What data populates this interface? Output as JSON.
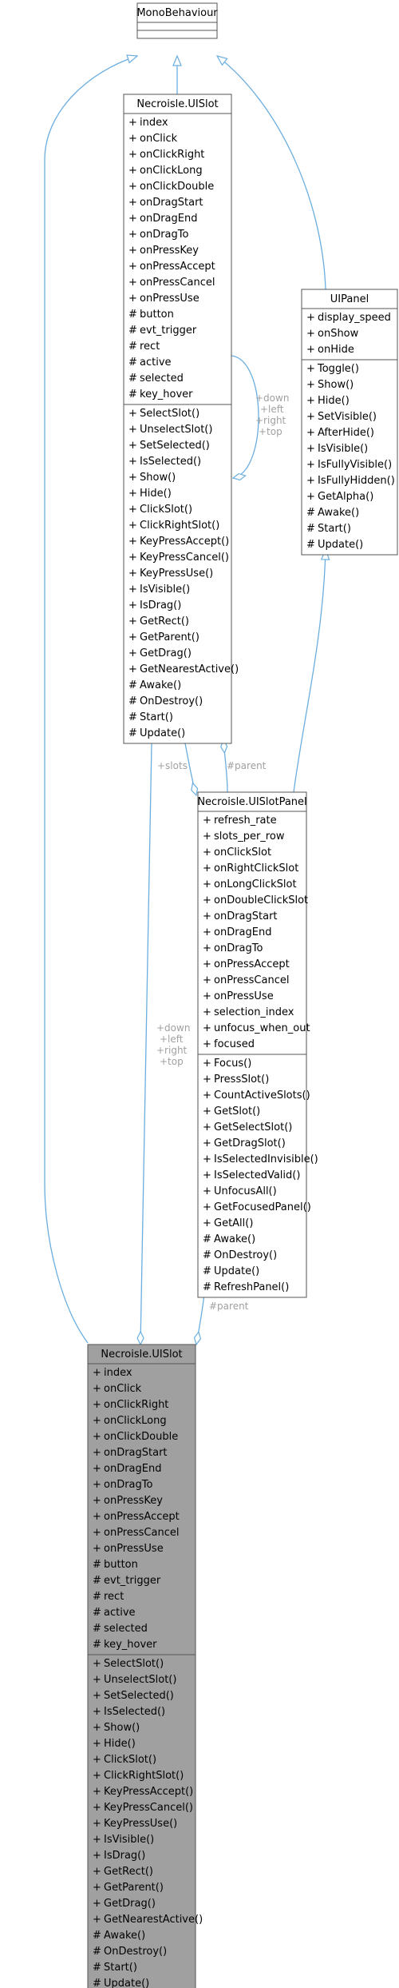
{
  "classes": {
    "monobehaviour": {
      "name": "MonoBehaviour",
      "attributes": [],
      "methods": []
    },
    "uislot_top": {
      "name": "Necroisle.UISlot",
      "attributes": [
        {
          "vis": "+",
          "name": "index"
        },
        {
          "vis": "+",
          "name": "onClick"
        },
        {
          "vis": "+",
          "name": "onClickRight"
        },
        {
          "vis": "+",
          "name": "onClickLong"
        },
        {
          "vis": "+",
          "name": "onClickDouble"
        },
        {
          "vis": "+",
          "name": "onDragStart"
        },
        {
          "vis": "+",
          "name": "onDragEnd"
        },
        {
          "vis": "+",
          "name": "onDragTo"
        },
        {
          "vis": "+",
          "name": "onPressKey"
        },
        {
          "vis": "+",
          "name": "onPressAccept"
        },
        {
          "vis": "+",
          "name": "onPressCancel"
        },
        {
          "vis": "+",
          "name": "onPressUse"
        },
        {
          "vis": "#",
          "name": "button"
        },
        {
          "vis": "#",
          "name": "evt_trigger"
        },
        {
          "vis": "#",
          "name": "rect"
        },
        {
          "vis": "#",
          "name": "active"
        },
        {
          "vis": "#",
          "name": "selected"
        },
        {
          "vis": "#",
          "name": "key_hover"
        }
      ],
      "methods": [
        {
          "vis": "+",
          "name": "SelectSlot()"
        },
        {
          "vis": "+",
          "name": "UnselectSlot()"
        },
        {
          "vis": "+",
          "name": "SetSelected()"
        },
        {
          "vis": "+",
          "name": "IsSelected()"
        },
        {
          "vis": "+",
          "name": "Show()"
        },
        {
          "vis": "+",
          "name": "Hide()"
        },
        {
          "vis": "+",
          "name": "ClickSlot()"
        },
        {
          "vis": "+",
          "name": "ClickRightSlot()"
        },
        {
          "vis": "+",
          "name": "KeyPressAccept()"
        },
        {
          "vis": "+",
          "name": "KeyPressCancel()"
        },
        {
          "vis": "+",
          "name": "KeyPressUse()"
        },
        {
          "vis": "+",
          "name": "IsVisible()"
        },
        {
          "vis": "+",
          "name": "IsDrag()"
        },
        {
          "vis": "+",
          "name": "GetRect()"
        },
        {
          "vis": "+",
          "name": "GetParent()"
        },
        {
          "vis": "+",
          "name": "GetDrag()"
        },
        {
          "vis": "+",
          "name": "GetNearestActive()"
        },
        {
          "vis": "#",
          "name": "Awake()"
        },
        {
          "vis": "#",
          "name": "OnDestroy()"
        },
        {
          "vis": "#",
          "name": "Start()"
        },
        {
          "vis": "#",
          "name": "Update()"
        }
      ]
    },
    "uipanel": {
      "name": "UIPanel",
      "attributes": [
        {
          "vis": "+",
          "name": "display_speed"
        },
        {
          "vis": "+",
          "name": "onShow"
        },
        {
          "vis": "+",
          "name": "onHide"
        }
      ],
      "methods": [
        {
          "vis": "+",
          "name": "Toggle()"
        },
        {
          "vis": "+",
          "name": "Show()"
        },
        {
          "vis": "+",
          "name": "Hide()"
        },
        {
          "vis": "+",
          "name": "SetVisible()"
        },
        {
          "vis": "+",
          "name": "AfterHide()"
        },
        {
          "vis": "+",
          "name": "IsVisible()"
        },
        {
          "vis": "+",
          "name": "IsFullyVisible()"
        },
        {
          "vis": "+",
          "name": "IsFullyHidden()"
        },
        {
          "vis": "+",
          "name": "GetAlpha()"
        },
        {
          "vis": "#",
          "name": "Awake()"
        },
        {
          "vis": "#",
          "name": "Start()"
        },
        {
          "vis": "#",
          "name": "Update()"
        }
      ]
    },
    "uislotpanel": {
      "name": "Necroisle.UISlotPanel",
      "attributes": [
        {
          "vis": "+",
          "name": "refresh_rate"
        },
        {
          "vis": "+",
          "name": "slots_per_row"
        },
        {
          "vis": "+",
          "name": "onClickSlot"
        },
        {
          "vis": "+",
          "name": "onRightClickSlot"
        },
        {
          "vis": "+",
          "name": "onLongClickSlot"
        },
        {
          "vis": "+",
          "name": "onDoubleClickSlot"
        },
        {
          "vis": "+",
          "name": "onDragStart"
        },
        {
          "vis": "+",
          "name": "onDragEnd"
        },
        {
          "vis": "+",
          "name": "onDragTo"
        },
        {
          "vis": "+",
          "name": "onPressAccept"
        },
        {
          "vis": "+",
          "name": "onPressCancel"
        },
        {
          "vis": "+",
          "name": "onPressUse"
        },
        {
          "vis": "+",
          "name": "selection_index"
        },
        {
          "vis": "+",
          "name": "unfocus_when_out"
        },
        {
          "vis": "+",
          "name": "focused"
        }
      ],
      "methods": [
        {
          "vis": "+",
          "name": "Focus()"
        },
        {
          "vis": "+",
          "name": "PressSlot()"
        },
        {
          "vis": "+",
          "name": "CountActiveSlots()"
        },
        {
          "vis": "+",
          "name": "GetSlot()"
        },
        {
          "vis": "+",
          "name": "GetSelectSlot()"
        },
        {
          "vis": "+",
          "name": "GetDragSlot()"
        },
        {
          "vis": "+",
          "name": "IsSelectedInvisible()"
        },
        {
          "vis": "+",
          "name": "IsSelectedValid()"
        },
        {
          "vis": "+",
          "name": "UnfocusAll()"
        },
        {
          "vis": "+",
          "name": "GetFocusedPanel()"
        },
        {
          "vis": "+",
          "name": "GetAll()"
        },
        {
          "vis": "#",
          "name": "Awake()"
        },
        {
          "vis": "#",
          "name": "OnDestroy()"
        },
        {
          "vis": "#",
          "name": "Update()"
        },
        {
          "vis": "#",
          "name": "RefreshPanel()"
        }
      ]
    },
    "uislot_bottom": {
      "name": "Necroisle.UISlot",
      "attributes": [
        {
          "vis": "+",
          "name": "index"
        },
        {
          "vis": "+",
          "name": "onClick"
        },
        {
          "vis": "+",
          "name": "onClickRight"
        },
        {
          "vis": "+",
          "name": "onClickLong"
        },
        {
          "vis": "+",
          "name": "onClickDouble"
        },
        {
          "vis": "+",
          "name": "onDragStart"
        },
        {
          "vis": "+",
          "name": "onDragEnd"
        },
        {
          "vis": "+",
          "name": "onDragTo"
        },
        {
          "vis": "+",
          "name": "onPressKey"
        },
        {
          "vis": "+",
          "name": "onPressAccept"
        },
        {
          "vis": "+",
          "name": "onPressCancel"
        },
        {
          "vis": "+",
          "name": "onPressUse"
        },
        {
          "vis": "#",
          "name": "button"
        },
        {
          "vis": "#",
          "name": "evt_trigger"
        },
        {
          "vis": "#",
          "name": "rect"
        },
        {
          "vis": "#",
          "name": "active"
        },
        {
          "vis": "#",
          "name": "selected"
        },
        {
          "vis": "#",
          "name": "key_hover"
        }
      ],
      "methods": [
        {
          "vis": "+",
          "name": "SelectSlot()"
        },
        {
          "vis": "+",
          "name": "UnselectSlot()"
        },
        {
          "vis": "+",
          "name": "SetSelected()"
        },
        {
          "vis": "+",
          "name": "IsSelected()"
        },
        {
          "vis": "+",
          "name": "Show()"
        },
        {
          "vis": "+",
          "name": "Hide()"
        },
        {
          "vis": "+",
          "name": "ClickSlot()"
        },
        {
          "vis": "+",
          "name": "ClickRightSlot()"
        },
        {
          "vis": "+",
          "name": "KeyPressAccept()"
        },
        {
          "vis": "+",
          "name": "KeyPressCancel()"
        },
        {
          "vis": "+",
          "name": "KeyPressUse()"
        },
        {
          "vis": "+",
          "name": "IsVisible()"
        },
        {
          "vis": "+",
          "name": "IsDrag()"
        },
        {
          "vis": "+",
          "name": "GetRect()"
        },
        {
          "vis": "+",
          "name": "GetParent()"
        },
        {
          "vis": "+",
          "name": "GetDrag()"
        },
        {
          "vis": "+",
          "name": "GetNearestActive()"
        },
        {
          "vis": "#",
          "name": "Awake()"
        },
        {
          "vis": "#",
          "name": "OnDestroy()"
        },
        {
          "vis": "#",
          "name": "Start()"
        },
        {
          "vis": "#",
          "name": "Update()"
        }
      ]
    }
  },
  "edge_labels": {
    "self_keys": [
      "+down",
      "+left",
      "+right",
      "+top"
    ],
    "down_keys": [
      "+down",
      "+left",
      "+right",
      "+top"
    ],
    "slots": "+slots",
    "parent_top": "#parent",
    "parent_bottom": "#parent"
  },
  "colors": {
    "edge": "#6aaee0",
    "box_border": "#555555",
    "highlight_fill": "#a0a0a0",
    "edge_label": "#a0a0a0"
  }
}
